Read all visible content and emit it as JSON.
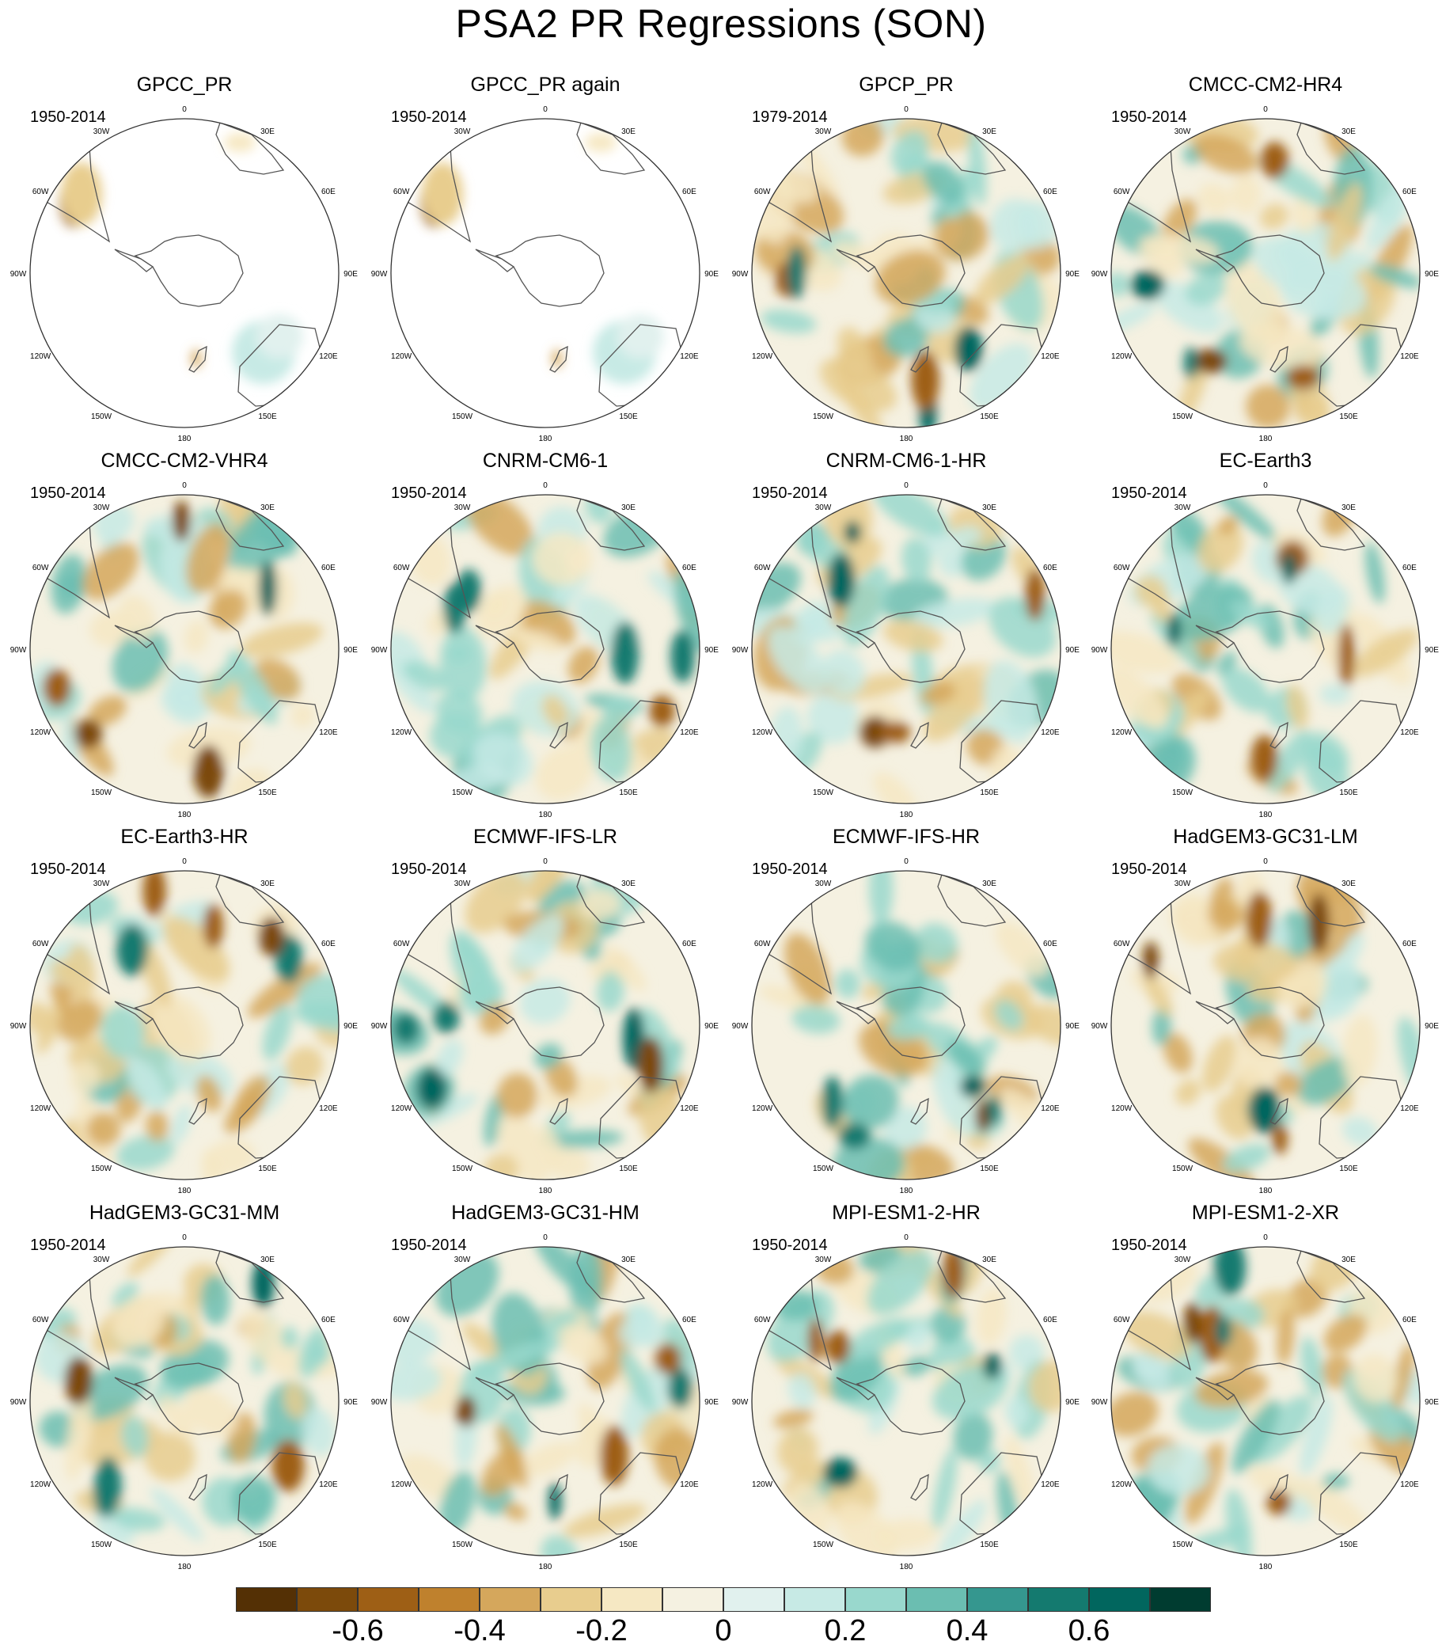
{
  "title": "PSA2 PR Regressions (SON)",
  "longitude_labels": [
    "0",
    "30E",
    "60E",
    "90E",
    "120E",
    "150E",
    "180",
    "150W",
    "120W",
    "90W",
    "60W",
    "30W"
  ],
  "panels": [
    {
      "name": "GPCC_PR",
      "period": "1950-2014",
      "coverage": "land-only"
    },
    {
      "name": "GPCC_PR again",
      "period": "1950-2014",
      "coverage": "land-only"
    },
    {
      "name": "GPCP_PR",
      "period": "1979-2014",
      "coverage": "full"
    },
    {
      "name": "CMCC-CM2-HR4",
      "period": "1950-2014",
      "coverage": "full"
    },
    {
      "name": "CMCC-CM2-VHR4",
      "period": "1950-2014",
      "coverage": "full"
    },
    {
      "name": "CNRM-CM6-1",
      "period": "1950-2014",
      "coverage": "full"
    },
    {
      "name": "CNRM-CM6-1-HR",
      "period": "1950-2014",
      "coverage": "full"
    },
    {
      "name": "EC-Earth3",
      "period": "1950-2014",
      "coverage": "full"
    },
    {
      "name": "EC-Earth3-HR",
      "period": "1950-2014",
      "coverage": "full"
    },
    {
      "name": "ECMWF-IFS-LR",
      "period": "1950-2014",
      "coverage": "full"
    },
    {
      "name": "ECMWF-IFS-HR",
      "period": "1950-2014",
      "coverage": "full"
    },
    {
      "name": "HadGEM3-GC31-LM",
      "period": "1950-2014",
      "coverage": "full"
    },
    {
      "name": "HadGEM3-GC31-MM",
      "period": "1950-2014",
      "coverage": "full"
    },
    {
      "name": "HadGEM3-GC31-HM",
      "period": "1950-2014",
      "coverage": "full"
    },
    {
      "name": "MPI-ESM1-2-HR",
      "period": "1950-2014",
      "coverage": "full"
    },
    {
      "name": "MPI-ESM1-2-XR",
      "period": "1950-2014",
      "coverage": "full"
    }
  ],
  "colorbar": {
    "colors": [
      "#543005",
      "#7c4a0b",
      "#9e5f15",
      "#bf812d",
      "#d5a75c",
      "#e8cd8e",
      "#f6e8c3",
      "#f5f1e1",
      "#e1f1ee",
      "#c7eae5",
      "#99d8cd",
      "#6bbeb1",
      "#35978f",
      "#147a6f",
      "#01665e",
      "#003c30"
    ],
    "tick_labels": [
      "-0.6",
      "-0.4",
      "-0.2",
      "0",
      "0.2",
      "0.4",
      "0.6"
    ]
  }
}
